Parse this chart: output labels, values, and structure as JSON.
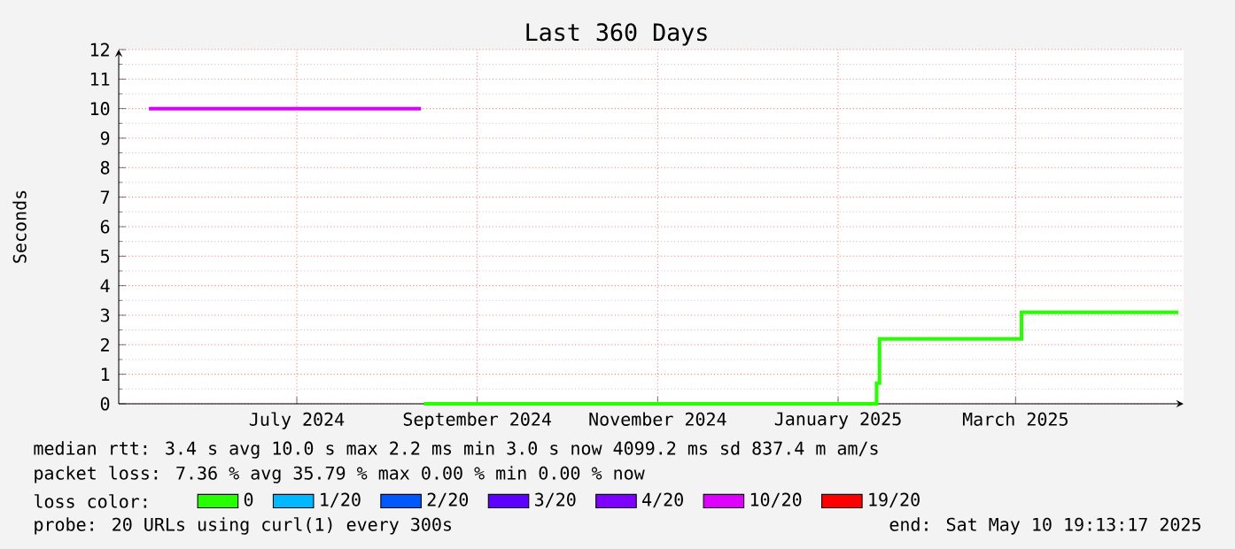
{
  "chart_data": {
    "type": "step",
    "title": "Last 360 Days",
    "ylabel": "Seconds",
    "xlim": [
      "2024-05-15T19:13",
      "2025-05-10T19:13"
    ],
    "xticks": [
      {
        "value": "2024-07-15",
        "label": "July 2024"
      },
      {
        "value": "2024-09-14",
        "label": "September 2024"
      },
      {
        "value": "2024-11-14",
        "label": "November 2024"
      },
      {
        "value": "2025-01-14",
        "label": "January 2025"
      },
      {
        "value": "2025-03-15",
        "label": "March 2025"
      }
    ],
    "ylim": [
      0,
      12
    ],
    "yticks": [
      0,
      1,
      2,
      3,
      4,
      5,
      6,
      7,
      8,
      9,
      10,
      11,
      12
    ],
    "grid": true,
    "legend": "bottom",
    "legend_title": "loss color:",
    "series": [
      {
        "name": "0",
        "color": "#26ff00",
        "x": [
          "2024-08-27",
          "2025-01-27",
          "2025-01-28",
          "2025-03-17",
          "2025-05-09"
        ],
        "values": [
          0,
          0.7,
          2.2,
          3.1,
          3.1
        ]
      },
      {
        "name": "1/20",
        "color": "#00b8ff"
      },
      {
        "name": "2/20",
        "color": "#0059ff"
      },
      {
        "name": "3/20",
        "color": "#5e00ff"
      },
      {
        "name": "4/20",
        "color": "#7e00ff"
      },
      {
        "name": "10/20",
        "color": "#dd00ff",
        "x": [
          "2024-05-26",
          "2024-08-26"
        ],
        "values": [
          10,
          10
        ]
      },
      {
        "name": "19/20",
        "color": "#ff0000"
      }
    ],
    "annotations": [
      "median rtt: 3.4 s avg 10.0 s max 2.2 ms min 3.0 s now 4099.2 ms sd 837.4 m am/s",
      "packet loss: 7.36 % avg 35.79 % max 0.00 % min 0.00 % now",
      "probe: 20 URLs using curl(1) every 300s",
      "end: Sat May 10 19:13:17 2025"
    ]
  }
}
